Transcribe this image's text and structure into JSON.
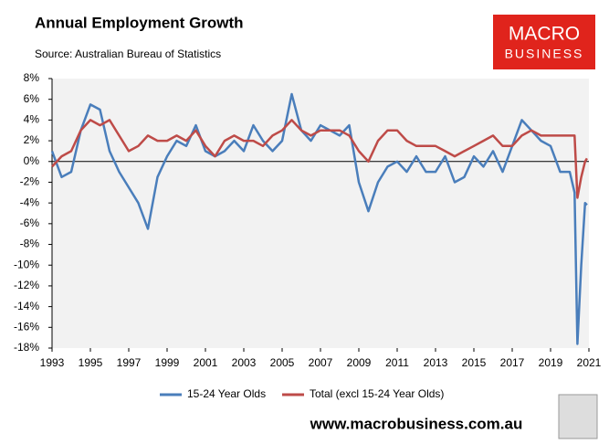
{
  "chart_data": {
    "type": "line",
    "title": "Annual Employment Growth",
    "subtitle": "Source: Australian Bureau of Statistics",
    "logo": [
      "MACRO",
      "BUSINESS"
    ],
    "footer": "www.macrobusiness.com.au",
    "x": [
      1993,
      1993.5,
      1994,
      1994.5,
      1995,
      1995.5,
      1996,
      1996.5,
      1997,
      1997.5,
      1998,
      1998.5,
      1999,
      1999.5,
      2000,
      2000.5,
      2001,
      2001.5,
      2002,
      2002.5,
      2003,
      2003.5,
      2004,
      2004.5,
      2005,
      2005.5,
      2006,
      2006.5,
      2007,
      2007.5,
      2008,
      2008.5,
      2009,
      2009.5,
      2010,
      2010.5,
      2011,
      2011.5,
      2012,
      2012.5,
      2013,
      2013.5,
      2014,
      2014.5,
      2015,
      2015.5,
      2016,
      2016.5,
      2017,
      2017.5,
      2018,
      2018.5,
      2019,
      2019.5,
      2020,
      2020.25,
      2020.4,
      2020.6,
      2020.8,
      2020.9
    ],
    "series": [
      {
        "name": "15-24 Year Olds",
        "color": "#4a7ebb",
        "values": [
          1,
          -1.5,
          -1,
          3,
          5.5,
          5,
          1,
          -1,
          -2.5,
          -4,
          -6.5,
          -1.5,
          0.5,
          2,
          1.5,
          3.5,
          1,
          0.5,
          1,
          2,
          1,
          3.5,
          2,
          1,
          2,
          6.5,
          3,
          2,
          3.5,
          3,
          2.5,
          3.5,
          -2,
          -4.8,
          -2,
          -0.5,
          0,
          -1,
          0.5,
          -1,
          -1,
          0.5,
          -2,
          -1.5,
          0.5,
          -0.5,
          1,
          -1,
          1.5,
          4,
          3,
          2,
          1.5,
          -1,
          -1,
          -3,
          -17.6,
          -10,
          -4,
          -4.2
        ]
      },
      {
        "name": "Total (excl 15-24 Year Olds)",
        "color": "#be4b48",
        "values": [
          -0.5,
          0.5,
          1,
          3,
          4,
          3.5,
          4,
          2.5,
          1,
          1.5,
          2.5,
          2,
          2,
          2.5,
          2,
          3,
          1.5,
          0.5,
          2,
          2.5,
          2,
          2,
          1.5,
          2.5,
          3,
          4,
          3,
          2.5,
          3,
          3,
          3,
          2.5,
          1,
          0,
          2,
          3,
          3,
          2,
          1.5,
          1.5,
          1.5,
          1,
          0.5,
          1,
          1.5,
          2,
          2.5,
          1.5,
          1.5,
          2.5,
          3,
          2.5,
          2.5,
          2.5,
          2.5,
          2.5,
          -3.5,
          -1.5,
          0,
          0.3
        ]
      }
    ],
    "xlim": [
      1993,
      2021
    ],
    "xticks": [
      1993,
      1995,
      1997,
      1999,
      2001,
      2003,
      2005,
      2007,
      2009,
      2011,
      2013,
      2015,
      2017,
      2019,
      2021
    ],
    "ylim": [
      -18,
      8
    ],
    "yticks": [
      {
        "value": 8,
        "label": "8%"
      },
      {
        "value": 6,
        "label": "6%"
      },
      {
        "value": 4,
        "label": "4%"
      },
      {
        "value": 2,
        "label": "2%"
      },
      {
        "value": 0,
        "label": "0%"
      },
      {
        "value": -2,
        "label": "-2%"
      },
      {
        "value": -4,
        "label": "-4%"
      },
      {
        "value": -6,
        "label": "-6%"
      },
      {
        "value": -8,
        "label": "-8%"
      },
      {
        "value": -10,
        "label": "-10%"
      },
      {
        "value": -12,
        "label": "-12%"
      },
      {
        "value": -14,
        "label": "-14%"
      },
      {
        "value": -16,
        "label": "-16%"
      },
      {
        "value": -18,
        "label": "-18%"
      }
    ]
  }
}
